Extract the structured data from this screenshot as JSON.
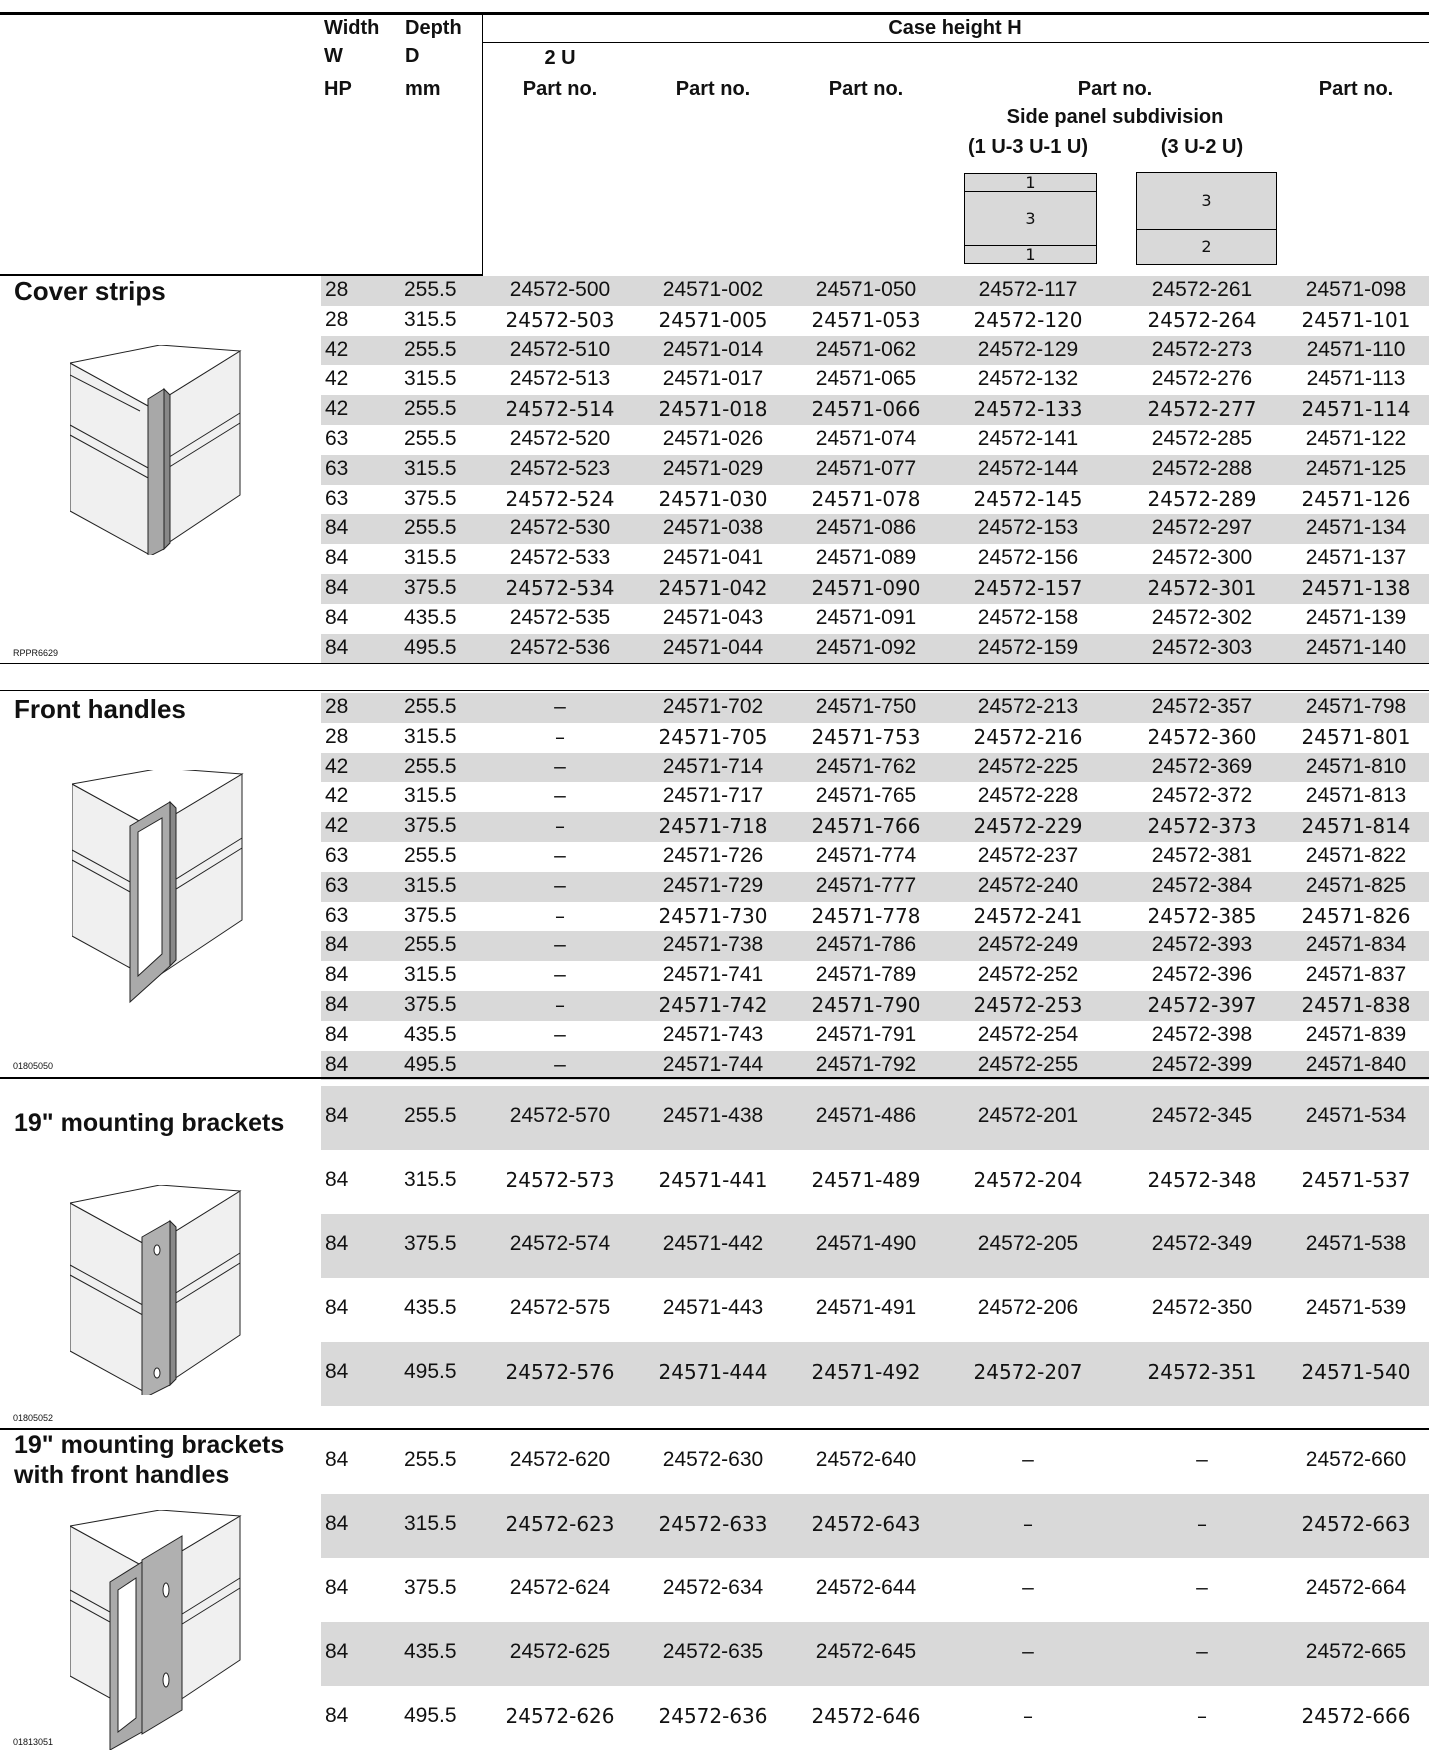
{
  "header": {
    "width_label": [
      "Width",
      "W",
      "HP"
    ],
    "depth_label": [
      "Depth",
      "D",
      "mm"
    ],
    "case_height": "Case height H",
    "u2": "2 U",
    "part_no": "Part no.",
    "side_panel": "Side panel subdivision",
    "sub_a": "(1 U-3 U-1 U)",
    "sub_b": "(3 U-2 U)",
    "diag_a": [
      "1",
      "3",
      "1"
    ],
    "diag_b": [
      "3",
      "2"
    ]
  },
  "sections": [
    {
      "title": [
        "Cover strips"
      ],
      "figure_id": "RPPR6629",
      "rows": [
        [
          "28",
          "255.5",
          "24572-500",
          "24571-002",
          "24571-050",
          "24572-117",
          "24572-261",
          "24571-098"
        ],
        [
          "28",
          "315.5",
          "24572-503",
          "24571-005",
          "24571-053",
          "24572-120",
          "24572-264",
          "24571-101"
        ],
        [
          "42",
          "255.5",
          "24572-510",
          "24571-014",
          "24571-062",
          "24572-129",
          "24572-273",
          "24571-110"
        ],
        [
          "42",
          "315.5",
          "24572-513",
          "24571-017",
          "24571-065",
          "24572-132",
          "24572-276",
          "24571-113"
        ],
        [
          "42",
          "255.5",
          "24572-514",
          "24571-018",
          "24571-066",
          "24572-133",
          "24572-277",
          "24571-114"
        ],
        [
          "63",
          "255.5",
          "24572-520",
          "24571-026",
          "24571-074",
          "24572-141",
          "24572-285",
          "24571-122"
        ],
        [
          "63",
          "315.5",
          "24572-523",
          "24571-029",
          "24571-077",
          "24572-144",
          "24572-288",
          "24571-125"
        ],
        [
          "63",
          "375.5",
          "24572-524",
          "24571-030",
          "24571-078",
          "24572-145",
          "24572-289",
          "24571-126"
        ],
        [
          "84",
          "255.5",
          "24572-530",
          "24571-038",
          "24571-086",
          "24572-153",
          "24572-297",
          "24571-134"
        ],
        [
          "84",
          "315.5",
          "24572-533",
          "24571-041",
          "24571-089",
          "24572-156",
          "24572-300",
          "24571-137"
        ],
        [
          "84",
          "375.5",
          "24572-534",
          "24571-042",
          "24571-090",
          "24572-157",
          "24572-301",
          "24571-138"
        ],
        [
          "84",
          "435.5",
          "24572-535",
          "24571-043",
          "24571-091",
          "24572-158",
          "24572-302",
          "24571-139"
        ],
        [
          "84",
          "495.5",
          "24572-536",
          "24571-044",
          "24571-092",
          "24572-159",
          "24572-303",
          "24571-140"
        ]
      ]
    },
    {
      "title": [
        "Front handles"
      ],
      "figure_id": "01805050",
      "rows": [
        [
          "28",
          "255.5",
          "–",
          "24571-702",
          "24571-750",
          "24572-213",
          "24572-357",
          "24571-798"
        ],
        [
          "28",
          "315.5",
          "–",
          "24571-705",
          "24571-753",
          "24572-216",
          "24572-360",
          "24571-801"
        ],
        [
          "42",
          "255.5",
          "–",
          "24571-714",
          "24571-762",
          "24572-225",
          "24572-369",
          "24571-810"
        ],
        [
          "42",
          "315.5",
          "–",
          "24571-717",
          "24571-765",
          "24572-228",
          "24572-372",
          "24571-813"
        ],
        [
          "42",
          "375.5",
          "–",
          "24571-718",
          "24571-766",
          "24572-229",
          "24572-373",
          "24571-814"
        ],
        [
          "63",
          "255.5",
          "–",
          "24571-726",
          "24571-774",
          "24572-237",
          "24572-381",
          "24571-822"
        ],
        [
          "63",
          "315.5",
          "–",
          "24571-729",
          "24571-777",
          "24572-240",
          "24572-384",
          "24571-825"
        ],
        [
          "63",
          "375.5",
          "–",
          "24571-730",
          "24571-778",
          "24572-241",
          "24572-385",
          "24571-826"
        ],
        [
          "84",
          "255.5",
          "–",
          "24571-738",
          "24571-786",
          "24572-249",
          "24572-393",
          "24571-834"
        ],
        [
          "84",
          "315.5",
          "–",
          "24571-741",
          "24571-789",
          "24572-252",
          "24572-396",
          "24571-837"
        ],
        [
          "84",
          "375.5",
          "–",
          "24571-742",
          "24571-790",
          "24572-253",
          "24572-397",
          "24571-838"
        ],
        [
          "84",
          "435.5",
          "–",
          "24571-743",
          "24571-791",
          "24572-254",
          "24572-398",
          "24571-839"
        ],
        [
          "84",
          "495.5",
          "–",
          "24571-744",
          "24571-792",
          "24572-255",
          "24572-399",
          "24571-840"
        ]
      ]
    },
    {
      "title": [
        "19\" mounting brackets"
      ],
      "figure_id": "01805052",
      "rows": [
        [
          "84",
          "255.5",
          "24572-570",
          "24571-438",
          "24571-486",
          "24572-201",
          "24572-345",
          "24571-534"
        ],
        [
          "84",
          "315.5",
          "24572-573",
          "24571-441",
          "24571-489",
          "24572-204",
          "24572-348",
          "24571-537"
        ],
        [
          "84",
          "375.5",
          "24572-574",
          "24571-442",
          "24571-490",
          "24572-205",
          "24572-349",
          "24571-538"
        ],
        [
          "84",
          "435.5",
          "24572-575",
          "24571-443",
          "24571-491",
          "24572-206",
          "24572-350",
          "24571-539"
        ],
        [
          "84",
          "495.5",
          "24572-576",
          "24571-444",
          "24571-492",
          "24572-207",
          "24572-351",
          "24571-540"
        ]
      ]
    },
    {
      "title": [
        "19\" mounting brackets",
        "with front handles"
      ],
      "figure_id": "01813051",
      "rows": [
        [
          "84",
          "255.5",
          "24572-620",
          "24572-630",
          "24572-640",
          "–",
          "–",
          "24572-660"
        ],
        [
          "84",
          "315.5",
          "24572-623",
          "24572-633",
          "24572-643",
          "–",
          "–",
          "24572-663"
        ],
        [
          "84",
          "375.5",
          "24572-624",
          "24572-634",
          "24572-644",
          "–",
          "–",
          "24572-664"
        ],
        [
          "84",
          "435.5",
          "24572-625",
          "24572-635",
          "24572-645",
          "–",
          "–",
          "24572-665"
        ],
        [
          "84",
          "495.5",
          "24572-626",
          "24572-636",
          "24572-646",
          "–",
          "–",
          "24572-666"
        ]
      ]
    }
  ]
}
